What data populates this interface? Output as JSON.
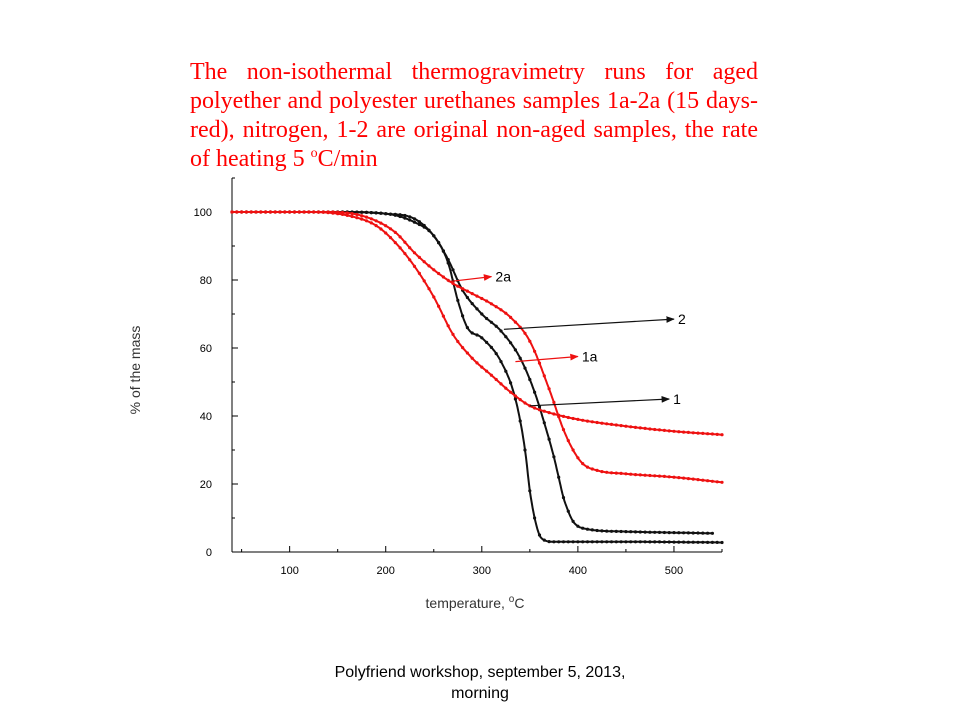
{
  "slide": {
    "title_main": "The non-isothermal thermogravimetry runs for aged polyether and polyester urethanes samples 1a-2a (15 days-red), nitrogen, 1-2 are original non-aged samples, the rate of heating 5 ",
    "title_sup": "o",
    "title_end": "C/min",
    "footer": "Polyfriend workshop, september 5, 2013, morning"
  },
  "colors": {
    "title": "#ff0000",
    "aged": "#ee1111",
    "original": "#111111",
    "axis": "#000000"
  },
  "chart_data": {
    "type": "line",
    "title": "The non-isothermal thermogravimetry runs for aged polyether and polyester urethanes samples 1a-2a (15 days-red), nitrogen, 1-2 are original non-aged samples, the rate of heating 5 oC/min",
    "xlabel_main": "temperature, ",
    "xlabel_sup": "o",
    "xlabel_end": "C",
    "ylabel": "% of the mass",
    "xlim": [
      40,
      550
    ],
    "ylim": [
      0,
      110
    ],
    "xticks": [
      100,
      200,
      300,
      400,
      500
    ],
    "yticks": [
      0,
      20,
      40,
      60,
      80,
      100
    ],
    "grid": false,
    "series": [
      {
        "name": "1",
        "color": "#111111",
        "x": [
          40,
          150,
          200,
          230,
          250,
          265,
          275,
          285,
          300,
          320,
          335,
          345,
          350,
          355,
          360,
          365,
          375,
          400,
          450,
          550
        ],
        "y": [
          100,
          100,
          99.5,
          97,
          93,
          85,
          74,
          66,
          63,
          56,
          45,
          30,
          18,
          10,
          5,
          3.5,
          3,
          3,
          3,
          2.8
        ]
      },
      {
        "name": "2",
        "color": "#111111",
        "x": [
          40,
          150,
          200,
          230,
          250,
          265,
          280,
          300,
          320,
          340,
          355,
          365,
          375,
          380,
          385,
          390,
          395,
          405,
          450,
          540
        ],
        "y": [
          100,
          100,
          99.5,
          98,
          93,
          86,
          77,
          70,
          65,
          57,
          47,
          38,
          28,
          22,
          16,
          12,
          9,
          7,
          6,
          5.5
        ]
      },
      {
        "name": "1a",
        "color": "#ee1111",
        "x": [
          40,
          120,
          160,
          190,
          210,
          230,
          250,
          270,
          290,
          310,
          330,
          350,
          370,
          400,
          450,
          500,
          550
        ],
        "y": [
          100,
          100,
          99,
          96,
          91,
          84,
          75,
          64,
          57,
          52,
          47,
          43,
          41,
          39,
          37,
          35.5,
          34.5
        ]
      },
      {
        "name": "2a",
        "color": "#ee1111",
        "x": [
          40,
          140,
          180,
          210,
          230,
          250,
          270,
          290,
          310,
          330,
          350,
          370,
          385,
          395,
          405,
          420,
          450,
          500,
          550
        ],
        "y": [
          100,
          100,
          98.5,
          94,
          88,
          83,
          79,
          76,
          73,
          69,
          62,
          48,
          36,
          30,
          26,
          24,
          23,
          22,
          20.5
        ]
      }
    ],
    "annotations": [
      {
        "label": "2a",
        "color": "#ee1111",
        "from": [
          265,
          79.5
        ],
        "to": [
          310,
          81
        ]
      },
      {
        "label": "2",
        "color": "#111111",
        "from": [
          323,
          65.5
        ],
        "to": [
          500,
          68.5
        ]
      },
      {
        "label": "1a",
        "color": "#ee1111",
        "from": [
          335,
          56
        ],
        "to": [
          400,
          57.5
        ]
      },
      {
        "label": "1",
        "color": "#111111",
        "from": [
          350,
          43
        ],
        "to": [
          495,
          45
        ]
      }
    ]
  }
}
